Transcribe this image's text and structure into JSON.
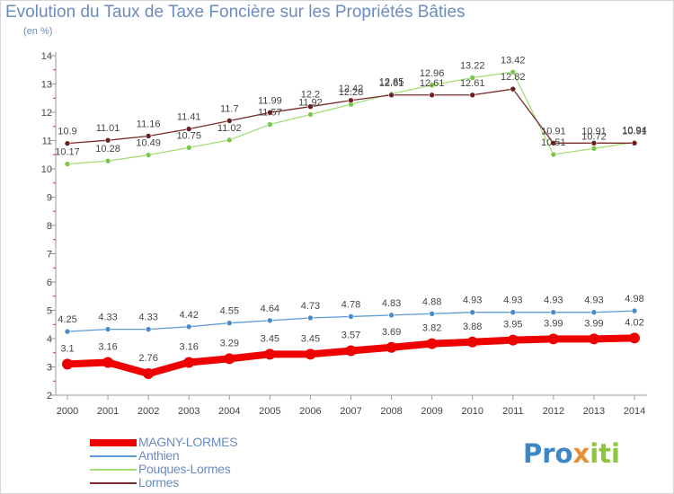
{
  "title": "Evolution du Taux de Taxe Foncière sur les Propriétés Bâties",
  "subtitle": "(en %)",
  "logo": {
    "part1": "Pro",
    "part2": "x",
    "part3": "iti"
  },
  "chart_data": {
    "type": "line",
    "title": "Evolution du Taux de Taxe Foncière sur les Propriétés Bâties",
    "ylabel": "(en %)",
    "xlabel": "",
    "ylim": [
      2,
      14
    ],
    "yticks": [
      2,
      3,
      4,
      5,
      6,
      7,
      8,
      9,
      10,
      11,
      12,
      13,
      14
    ],
    "grid": false,
    "x": [
      2000,
      2001,
      2002,
      2003,
      2004,
      2005,
      2006,
      2007,
      2008,
      2009,
      2010,
      2011,
      2012,
      2013,
      2014
    ],
    "series": [
      {
        "name": "MAGNY-LORMES",
        "color": "#ee0000",
        "marker": "#ee0000",
        "width": 8,
        "values": [
          3.1,
          3.16,
          2.76,
          3.16,
          3.29,
          3.45,
          3.45,
          3.57,
          3.69,
          3.82,
          3.88,
          3.95,
          3.99,
          3.99,
          4.02
        ],
        "labels": [
          "3.1",
          "3.16",
          "2.76",
          "3.16",
          "3.29",
          "3.45",
          "3.45",
          "3.57",
          "3.69",
          "3.82",
          "3.88",
          "3.95",
          "3.99",
          "3.99",
          "4.02"
        ]
      },
      {
        "name": "Anthien",
        "color": "#5b9bd5",
        "marker": "#4a8ac8",
        "width": 1.3,
        "values": [
          4.25,
          4.33,
          4.33,
          4.42,
          4.55,
          4.64,
          4.73,
          4.78,
          4.83,
          4.88,
          4.93,
          4.93,
          4.93,
          4.93,
          4.98
        ],
        "labels": [
          "4.25",
          "4.33",
          "4.33",
          "4.42",
          "4.55",
          "4.64",
          "4.73",
          "4.78",
          "4.83",
          "4.88",
          "4.93",
          "4.93",
          "4.93",
          "4.93",
          "4.98"
        ]
      },
      {
        "name": "Pouques-Lormes",
        "color": "#a6dd7a",
        "marker": "#7cc64a",
        "width": 1.3,
        "values": [
          10.17,
          10.28,
          10.49,
          10.75,
          11.02,
          11.57,
          11.92,
          12.28,
          12.65,
          12.96,
          13.22,
          13.42,
          10.51,
          10.72,
          10.94
        ],
        "labels": [
          "10.17",
          "10.28",
          "10.49",
          "10.75",
          "11.02",
          "11.57",
          "11.92",
          "12.28",
          "12.65",
          "12.96",
          "13.22",
          "13.42",
          "10.51",
          "10.72",
          "10.94"
        ]
      },
      {
        "name": "Lormes",
        "color": "#7a2a2a",
        "marker": "#6b1f1f",
        "width": 1.3,
        "values": [
          10.9,
          11.01,
          11.16,
          11.41,
          11.7,
          11.99,
          12.2,
          12.42,
          12.61,
          12.61,
          12.61,
          12.82,
          10.91,
          10.91,
          10.91
        ],
        "labels": [
          "10.9",
          "11.01",
          "11.16",
          "11.41",
          "11.7",
          "11.99",
          "12.2",
          "12.42",
          "12.61",
          "12.61",
          "12.61",
          "12.82",
          "10.91",
          "10.91",
          "10.91"
        ]
      }
    ],
    "legend": "bottom-left"
  }
}
